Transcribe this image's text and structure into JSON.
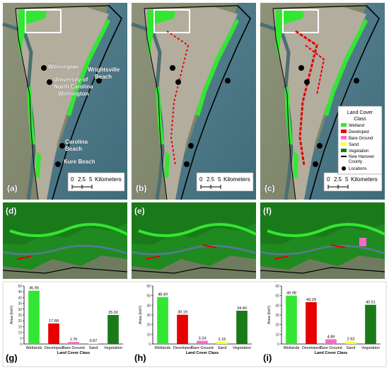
{
  "colors": {
    "wetlands": "#33e633",
    "developed": "#e60000",
    "bare_ground": "#ff66cc",
    "sand": "#ffff33",
    "vegetation": "#1a7a1a",
    "water": "#4f7d8c",
    "land": "#8a9076",
    "boundary": "#000000"
  },
  "panels": {
    "a": "(a)",
    "b": "(b)",
    "c": "(c)",
    "d": "(d)",
    "e": "(e)",
    "f": "(f)",
    "g": "(g)",
    "h": "(h)",
    "i": "(i)"
  },
  "places": {
    "wilmington": "Wilmington",
    "uncw_1": "University of",
    "uncw_2": "North Carolina",
    "uncw_3": "Wilmington",
    "wrightsville_1": "Wrightsville",
    "wrightsville_2": "Beach",
    "carolina_1": "Carolina",
    "carolina_2": "Beach",
    "kure": "Kure Beach"
  },
  "scalebar": {
    "t0": "0",
    "t1": "2.5",
    "t2": "5",
    "unit": "Kilometers"
  },
  "legend": {
    "title_1": "Land Cover",
    "title_2": "Class",
    "items": [
      {
        "label": "Wetland"
      },
      {
        "label": "Developed"
      },
      {
        "label": "Bare Ground"
      },
      {
        "label": "Sand"
      },
      {
        "label": "Vegetation"
      },
      {
        "label": "New Hanover"
      },
      {
        "label": "County"
      },
      {
        "label": "Locations"
      }
    ]
  },
  "chart_data": [
    {
      "type": "bar",
      "panel": "(g)",
      "categories": [
        "Wetlands",
        "Developed",
        "Bare Ground",
        "Sand",
        "Vegetation"
      ],
      "values": [
        45.9,
        17.68,
        1.76,
        0.67,
        25.02
      ],
      "value_labels": [
        "45.90",
        "17.68",
        "1.76",
        "0.67",
        "25.02"
      ],
      "xlabel": "Land Cover Class",
      "ylabel": "Area (km²)",
      "ylim": [
        0,
        50
      ],
      "yticks": [
        "0",
        "5",
        "10",
        "15",
        "20",
        "25",
        "30",
        "35",
        "40",
        "45",
        "50"
      ]
    },
    {
      "type": "bar",
      "panel": "(h)",
      "categories": [
        "Wetlands",
        "Developed",
        "Bare Ground",
        "Sand",
        "Vegetation"
      ],
      "values": [
        48.49,
        30.19,
        3.24,
        2.15,
        34.4
      ],
      "value_labels": [
        "48.49",
        "30.19",
        "3.24",
        "2.15",
        "34.40"
      ],
      "xlabel": "Land Cover Class",
      "ylabel": "Area (km²)",
      "ylim": [
        0,
        60
      ],
      "yticks": [
        "0",
        "10",
        "20",
        "30",
        "40",
        "50",
        "60"
      ]
    },
    {
      "type": "bar",
      "panel": "(i)",
      "categories": [
        "Wetlands",
        "Developed",
        "Bare Ground",
        "Sand",
        "Vegetation"
      ],
      "values": [
        49.98,
        43.29,
        4.89,
        2.63,
        40.51
      ],
      "value_labels": [
        "49.98",
        "43.29",
        "4.89",
        "2.63",
        "40.51"
      ],
      "xlabel": "Land Cover Class",
      "ylabel": "Area (km²)",
      "ylim": [
        0,
        60
      ],
      "yticks": [
        "0",
        "10",
        "20",
        "30",
        "40",
        "50",
        "60"
      ]
    }
  ]
}
